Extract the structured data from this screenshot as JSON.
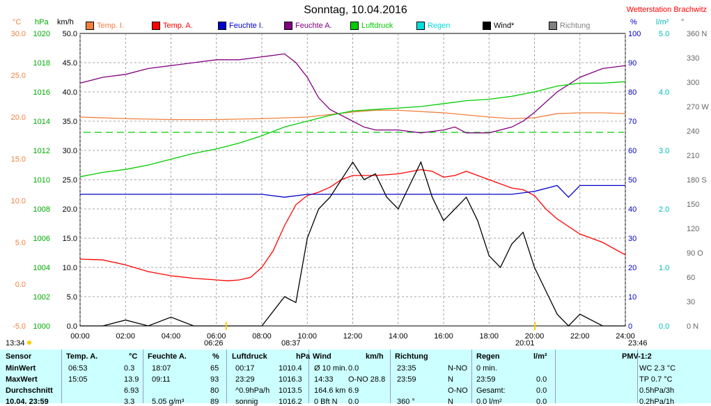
{
  "title": "Sonntag, 10.04.2016",
  "station": "Wetterstation Brachwitz",
  "legend": [
    {
      "label": "Temp. I.",
      "color": "#f08040"
    },
    {
      "label": "Temp. A.",
      "color": "#ff0000"
    },
    {
      "label": "Feuchte I.",
      "color": "#0000cc"
    },
    {
      "label": "Feuchte A.",
      "color": "#800080"
    },
    {
      "label": "Luftdruck",
      "color": "#00cc00"
    },
    {
      "label": "Regen",
      "color": "#00dddd"
    },
    {
      "label": "Wind*",
      "color": "#000000"
    },
    {
      "label": "Richtung",
      "color": "#808080"
    }
  ],
  "units": {
    "temp": "°C",
    "hpa": "hPa",
    "kmh": "km/h",
    "pct": "%",
    "rain": "l/m²",
    "dir": "°"
  },
  "markers": {
    "sunrise_left": "13:34",
    "sunrise": "06:26",
    "rain_start": "08:37",
    "sunset": "20:01",
    "end": "23:46"
  },
  "chart_data": {
    "type": "line",
    "x_ticks": [
      "00:00",
      "02:00",
      "04:00",
      "06:00",
      "08:00",
      "10:00",
      "12:00",
      "14:00",
      "16:00",
      "18:00",
      "20:00",
      "22:00",
      "24:00"
    ],
    "xlim": [
      0,
      24
    ],
    "axes": {
      "temp": {
        "ticks": [
          "30.0",
          "25.0",
          "20.0",
          "15.0",
          "10.0",
          "5.0",
          "0.0",
          "-5.0"
        ],
        "ylim": [
          -5,
          30
        ],
        "color": "#f08040"
      },
      "pressure": {
        "ticks": [
          "1020",
          "1018",
          "1016",
          "1014",
          "1012",
          "1010",
          "1008",
          "1006",
          "1004",
          "1002",
          "1000"
        ],
        "ylim": [
          1000,
          1020
        ],
        "color": "#00aa00"
      },
      "wind": {
        "ticks": [
          "50.0",
          "45.0",
          "40.0",
          "35.0",
          "30.0",
          "25.0",
          "20.0",
          "15.0",
          "10.0",
          "5.0",
          "0.0"
        ],
        "ylim": [
          0,
          50
        ],
        "color": "#000000"
      },
      "humidity": {
        "ticks": [
          "100",
          "90",
          "80",
          "70",
          "60",
          "50",
          "40",
          "30",
          "20",
          "10",
          "0"
        ],
        "ylim": [
          0,
          100
        ],
        "color": "#0000cc"
      },
      "rain": {
        "ticks": [
          "5.0",
          "4.0",
          "3.0",
          "2.0",
          "1.0",
          "0.0"
        ],
        "ylim": [
          0,
          5
        ],
        "color": "#00bbbb"
      },
      "direction": {
        "ticks": [
          "360 N",
          "330",
          "300",
          "270 W",
          "240",
          "210",
          "180 S",
          "150",
          "120",
          "90 O",
          "60",
          "30",
          "0 N"
        ],
        "ylim": [
          0,
          360
        ],
        "color": "#666666"
      }
    },
    "series": [
      {
        "name": "Temp. I.",
        "color": "#f08040",
        "x": [
          0,
          2,
          4,
          6,
          8,
          10,
          12,
          13,
          14,
          16,
          18,
          19,
          20,
          21,
          22,
          23,
          24
        ],
        "y": [
          20.0,
          19.8,
          19.7,
          19.7,
          19.8,
          20.0,
          20.6,
          20.8,
          20.8,
          20.5,
          20.0,
          19.8,
          19.9,
          20.4,
          20.5,
          20.5,
          20.4
        ]
      },
      {
        "name": "Temp. A.",
        "color": "#ff0000",
        "x": [
          0,
          1,
          2,
          3,
          4,
          5,
          6,
          6.5,
          7,
          7.5,
          8,
          8.5,
          9,
          9.5,
          10,
          10.5,
          11,
          11.5,
          12,
          13,
          14,
          15,
          15.5,
          16,
          16.5,
          17,
          18,
          19,
          19.5,
          20,
          20.5,
          21,
          22,
          23,
          24
        ],
        "y": [
          3.0,
          2.9,
          2.3,
          1.5,
          1.0,
          0.7,
          0.5,
          0.4,
          0.5,
          0.8,
          2.0,
          4.0,
          7.0,
          9.5,
          10.6,
          11.0,
          11.6,
          12.5,
          13.0,
          13.0,
          13.2,
          13.7,
          13.5,
          12.8,
          13.0,
          13.5,
          12.5,
          11.5,
          11.3,
          10.6,
          9.0,
          7.8,
          6.0,
          5.0,
          3.5
        ]
      },
      {
        "name": "Feuchte I.",
        "color": "#0000cc",
        "x": [
          0,
          4,
          8,
          9,
          10,
          12,
          14,
          16,
          18,
          19,
          20,
          21,
          21.5,
          22,
          23,
          24
        ],
        "y": [
          45,
          45,
          45,
          44,
          45,
          45,
          45,
          45,
          45,
          45,
          46,
          48,
          44,
          48,
          48,
          48
        ]
      },
      {
        "name": "Feuchte A.",
        "color": "#800080",
        "x": [
          0,
          1,
          2,
          3,
          4,
          5,
          6,
          7,
          8,
          9,
          9.5,
          10,
          10.5,
          11,
          12,
          12.5,
          13,
          14,
          15,
          16,
          16.5,
          17,
          18,
          19,
          19.5,
          20,
          21,
          22,
          23,
          24
        ],
        "y": [
          83,
          85,
          86,
          88,
          89,
          90,
          91,
          91,
          92,
          93,
          90,
          85,
          78,
          74,
          70,
          68,
          67,
          67,
          66,
          67,
          68,
          66,
          66,
          68,
          70,
          73,
          80,
          85,
          88,
          89
        ]
      },
      {
        "name": "Luftdruck",
        "color": "#00cc00",
        "x": [
          0,
          1,
          2,
          3,
          4,
          5,
          6,
          7,
          8,
          9,
          10,
          11,
          12,
          13,
          14,
          15,
          16,
          17,
          18,
          19,
          20,
          21,
          22,
          23,
          24
        ],
        "y": [
          1010.2,
          1010.5,
          1010.7,
          1011.0,
          1011.4,
          1011.8,
          1012.1,
          1012.5,
          1013.0,
          1013.6,
          1014.0,
          1014.4,
          1014.7,
          1014.8,
          1014.9,
          1015.0,
          1015.2,
          1015.4,
          1015.5,
          1015.7,
          1016.0,
          1016.4,
          1016.6,
          1016.6,
          1016.7
        ]
      },
      {
        "name": "Wind*",
        "color": "#000000",
        "x": [
          0,
          1,
          2,
          3,
          4,
          5,
          6,
          7,
          8,
          9,
          9.5,
          10,
          10.5,
          11,
          11.5,
          12,
          12.5,
          13,
          13.5,
          14,
          14.5,
          15,
          15.5,
          16,
          16.5,
          17,
          17.5,
          18,
          18.5,
          19,
          19.5,
          20,
          20.5,
          21,
          21.5,
          22,
          23,
          24
        ],
        "y": [
          0,
          0,
          1,
          0,
          1.5,
          0,
          0,
          0,
          0,
          5,
          4,
          15,
          20,
          22,
          25,
          28,
          25,
          26,
          22,
          20,
          24,
          28,
          22,
          18,
          20,
          22,
          18,
          12,
          10,
          14,
          16,
          10,
          6,
          2,
          0,
          2,
          0,
          0
        ]
      }
    ]
  },
  "table": {
    "headers": [
      "Sensor",
      "Temp. A.",
      "°C",
      "Feuchte A.",
      "%",
      "Luftdruck",
      "hPa",
      "Wind",
      "km/h",
      "Richtung",
      "Regen",
      "l/m²",
      "PMV-1:2"
    ],
    "rows": [
      {
        "label": "MinWert",
        "c1": "06:53",
        "c2": "0.3",
        "c3": "18:07",
        "c4": "65",
        "c5": "00:17",
        "c6": "1010.4",
        "c7": "Ø 10 min.",
        "c8": "0.0",
        "c9": "23:35",
        "c10": "N-NO",
        "c11": "0 min.",
        "c12": "",
        "c13": "WC 2.3 °C"
      },
      {
        "label": "MaxWert",
        "c1": "15:05",
        "c2": "13.9",
        "c3": "09:11",
        "c4": "93",
        "c5": "23:29",
        "c6": "1016.3",
        "c7": "14:33",
        "c8": "O-NO 28.8",
        "c9": "23:59",
        "c10": "N",
        "c11": "23:59",
        "c12": "0.0",
        "c13": "TP 0.7 °C"
      },
      {
        "label": "Durchschnitt",
        "c1": "",
        "c2": "6.93",
        "c3": "",
        "c4": "80",
        "c5": "^0.9hPa/h",
        "c6": "1013.5",
        "c7": "164.6 km",
        "c8": "6.9",
        "c9": "",
        "c10": "O-NO",
        "c11": "Gesamt:",
        "c12": "0.0",
        "c13": "0.5hPa/3h"
      },
      {
        "label": "10.04. 23:59",
        "c1": "",
        "c2": "3.3",
        "c3": "5.05 g/m³",
        "c4": "89",
        "c5": "sonnig",
        "c6": "1016.2",
        "c7": "0 Bft N",
        "c8": "0.0",
        "c9": "360 °",
        "c10": "N",
        "c11": "0.0 l/m²",
        "c12": "0.0",
        "c13": "0.2hPa/1h"
      }
    ]
  }
}
